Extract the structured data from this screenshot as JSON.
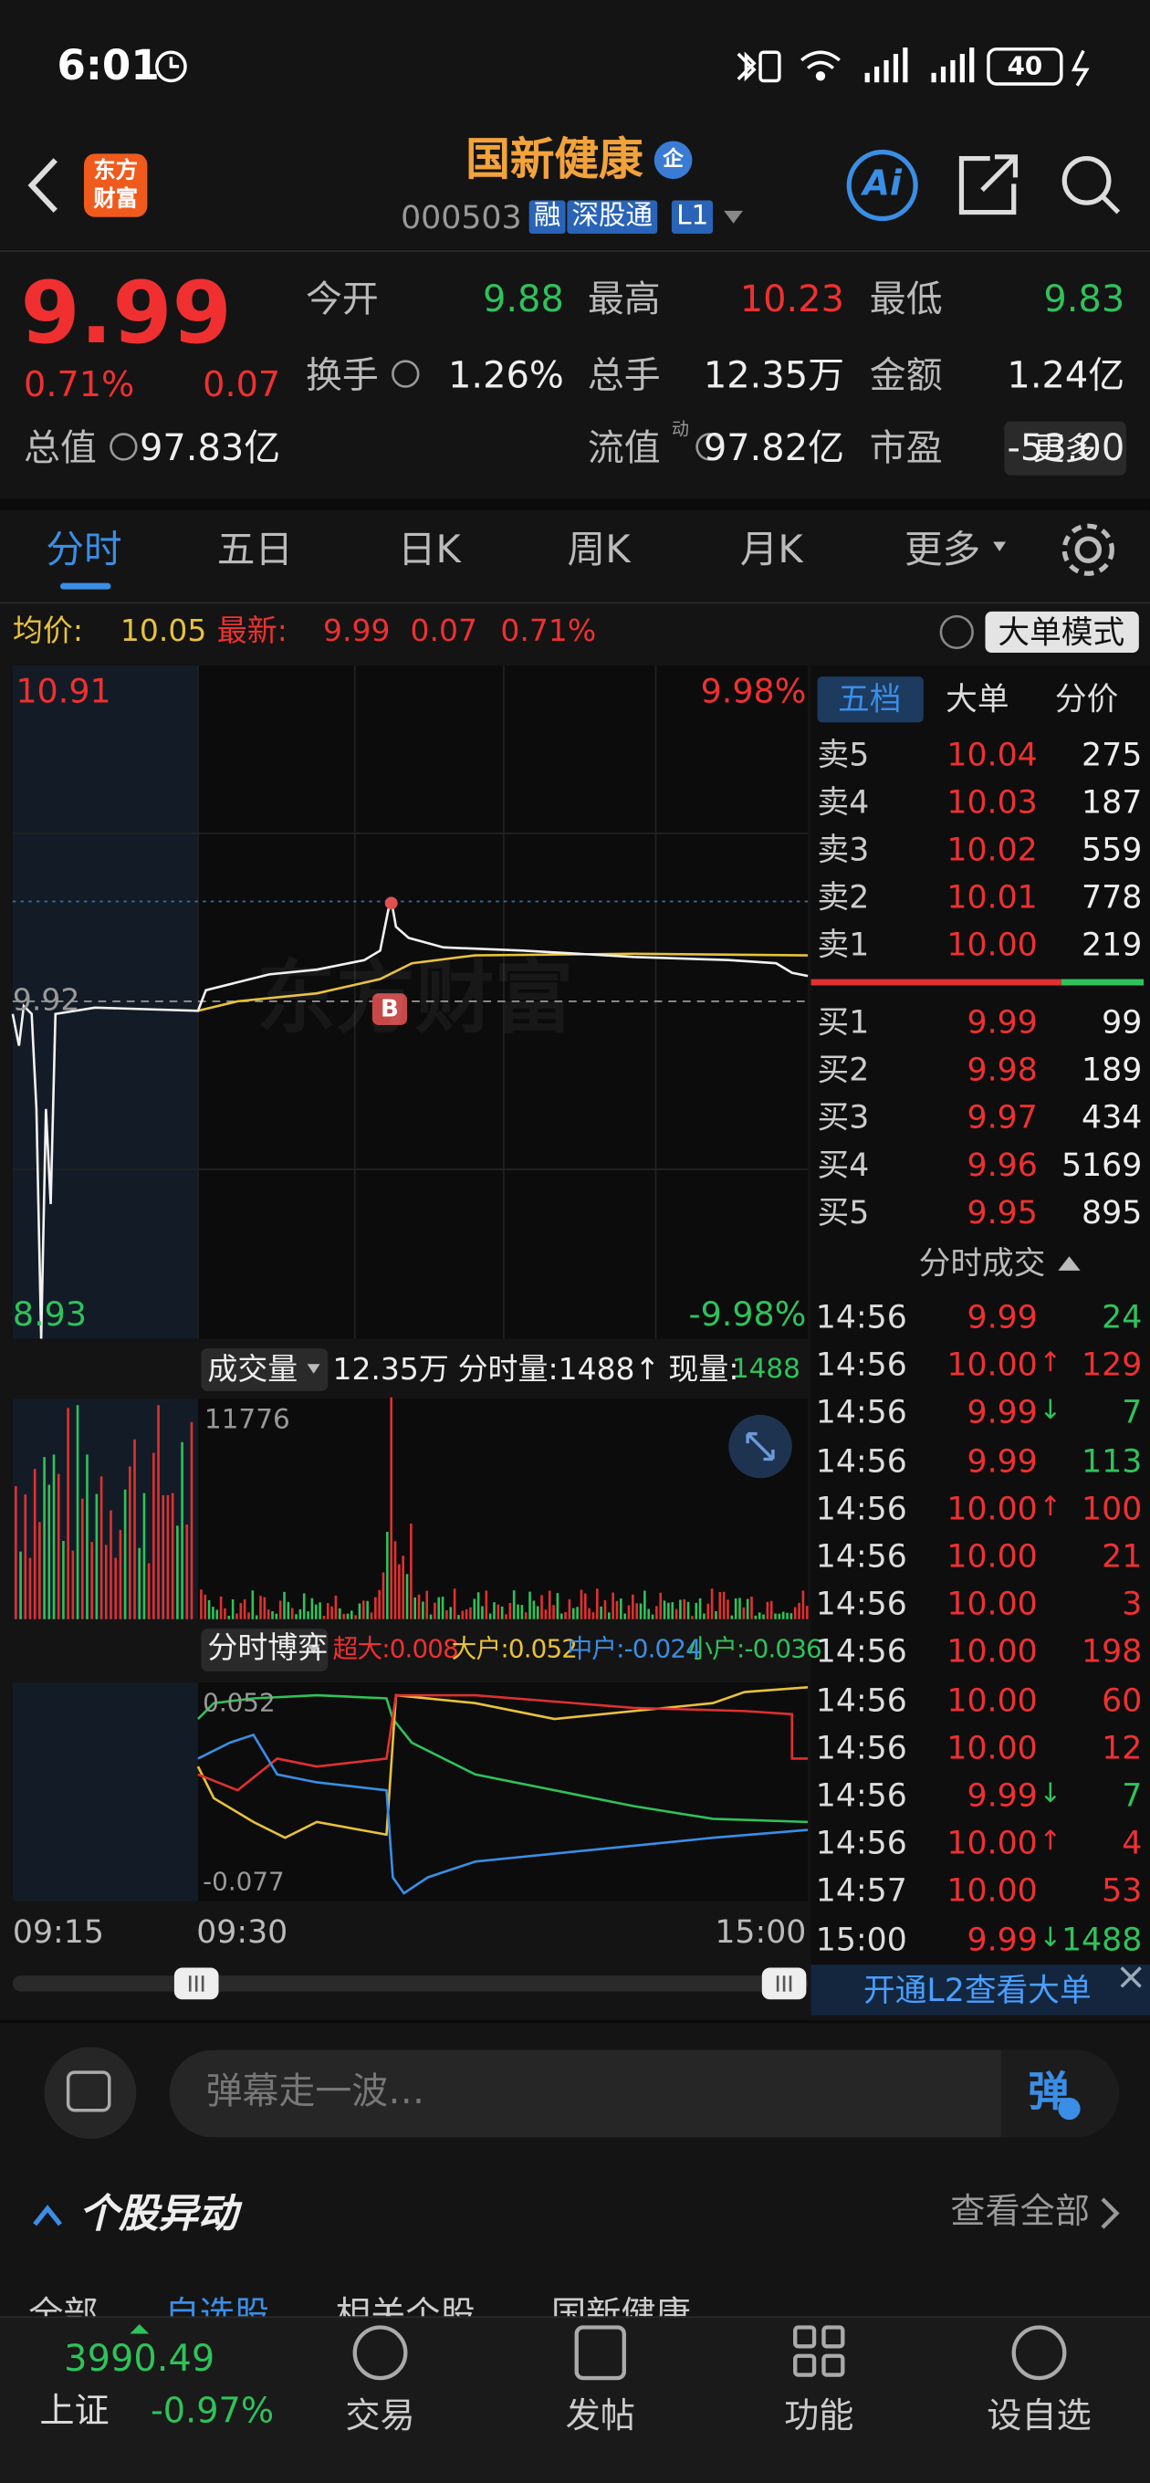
{
  "status_bar": {
    "time": "6:01",
    "battery": "40"
  },
  "header": {
    "logo": [
      "东方",
      "财富"
    ],
    "title": "国新健康",
    "badge": "企",
    "code": "000503",
    "tags": [
      "融",
      "深股通",
      "L1"
    ],
    "ai_button": "Ai"
  },
  "quote": {
    "price": "9.99",
    "change_pct": "0.71%",
    "change": "0.07",
    "color": "#f03030",
    "stats": [
      {
        "label": "今开",
        "value": "9.88",
        "color": "#2fc25b"
      },
      {
        "label": "最高",
        "value": "10.23",
        "color": "#f03030"
      },
      {
        "label": "最低",
        "value": "9.83",
        "color": "#2fc25b"
      },
      {
        "label": "换手",
        "value": "1.26%",
        "color": "#eeeeee"
      },
      {
        "label": "总手",
        "value": "12.35万",
        "color": "#eeeeee"
      },
      {
        "label": "金额",
        "value": "1.24亿",
        "color": "#eeeeee"
      },
      {
        "label": "总值",
        "value": "97.83亿",
        "color": "#eeeeee"
      },
      {
        "label": "流值",
        "value": "97.82亿",
        "color": "#eeeeee"
      },
      {
        "label": "市盈",
        "value": "-53.00",
        "color": "#eeeeee"
      }
    ],
    "pe_superscript": "动",
    "more": "更多"
  },
  "tabs": [
    "分时",
    "五日",
    "日K",
    "周K",
    "月K",
    "更多"
  ],
  "info_line": {
    "avg_label": "均价:",
    "avg": "10.05",
    "latest_label": "最新:",
    "latest": "9.99",
    "change": "0.07",
    "change_pct": "0.71%",
    "mode_button": "大单模式"
  },
  "chart": {
    "high": "10.91",
    "low": "8.93",
    "high_pct": "9.98%",
    "low_pct": "-9.98%",
    "prev_close": "9.92",
    "watermark": "东方财富",
    "buy_marker": "B",
    "volume_button": "成交量",
    "volume_total": "12.35万",
    "period_volume": "分时量:1488↑",
    "current_volume_label": "现量:",
    "current_volume": "1488",
    "volume_max": "11776",
    "flow_button": "分时博弈",
    "flow": [
      {
        "label": "超大:0.008",
        "color": "#f03030"
      },
      {
        "label": "大户:0.052",
        "color": "#e8c23a"
      },
      {
        "label": "中户:-0.024",
        "color": "#3a8ee6"
      },
      {
        "label": "小户:-0.036",
        "color": "#2fc25b"
      }
    ],
    "flow_max": "0.052",
    "flow_min": "-0.077",
    "times": [
      "09:15",
      "09:30",
      "15:00"
    ]
  },
  "order_book": {
    "tabs": [
      "五档",
      "大单",
      "分价"
    ],
    "asks": [
      {
        "label": "卖5",
        "price": "10.04",
        "volume": "275"
      },
      {
        "label": "卖4",
        "price": "10.03",
        "volume": "187"
      },
      {
        "label": "卖3",
        "price": "10.02",
        "volume": "559"
      },
      {
        "label": "卖2",
        "price": "10.01",
        "volume": "778"
      },
      {
        "label": "卖1",
        "price": "10.00",
        "volume": "219"
      }
    ],
    "bids": [
      {
        "label": "买1",
        "price": "9.99",
        "volume": "99"
      },
      {
        "label": "买2",
        "price": "9.98",
        "volume": "189"
      },
      {
        "label": "买3",
        "price": "9.97",
        "volume": "434"
      },
      {
        "label": "买4",
        "price": "9.96",
        "volume": "5169"
      },
      {
        "label": "买5",
        "price": "9.95",
        "volume": "895"
      }
    ]
  },
  "trades": {
    "title": "分时成交",
    "rows": [
      {
        "time": "14:56",
        "price": "9.99",
        "arrow": null,
        "volume": "24",
        "color": "#2fc25b"
      },
      {
        "time": "14:56",
        "price": "10.00",
        "arrow": "↑",
        "volume": "129",
        "color": "#f03030"
      },
      {
        "time": "14:56",
        "price": "9.99",
        "arrow": "↓",
        "volume": "7",
        "color": "#2fc25b"
      },
      {
        "time": "14:56",
        "price": "9.99",
        "arrow": null,
        "volume": "113",
        "color": "#2fc25b"
      },
      {
        "time": "14:56",
        "price": "10.00",
        "arrow": "↑",
        "volume": "100",
        "color": "#f03030"
      },
      {
        "time": "14:56",
        "price": "10.00",
        "arrow": null,
        "volume": "21",
        "color": "#f03030"
      },
      {
        "time": "14:56",
        "price": "10.00",
        "arrow": null,
        "volume": "3",
        "color": "#f03030"
      },
      {
        "time": "14:56",
        "price": "10.00",
        "arrow": null,
        "volume": "198",
        "color": "#f03030"
      },
      {
        "time": "14:56",
        "price": "10.00",
        "arrow": null,
        "volume": "60",
        "color": "#f03030"
      },
      {
        "time": "14:56",
        "price": "10.00",
        "arrow": null,
        "volume": "12",
        "color": "#f03030"
      },
      {
        "time": "14:56",
        "price": "9.99",
        "arrow": "↓",
        "volume": "7",
        "color": "#2fc25b"
      },
      {
        "time": "14:56",
        "price": "10.00",
        "arrow": "↑",
        "volume": "4",
        "color": "#f03030"
      },
      {
        "time": "14:57",
        "price": "10.00",
        "arrow": null,
        "volume": "53",
        "color": "#f03030"
      },
      {
        "time": "15:00",
        "price": "9.99",
        "arrow": "↓",
        "volume": "1488",
        "color": "#2fc25b"
      }
    ]
  },
  "l2_banner": "开通L2查看大单",
  "danmaku": {
    "placeholder": "弹幕走一波…",
    "send": "弹"
  },
  "movers": {
    "title": "个股异动",
    "view_all": "查看全部",
    "tabs": [
      "全部",
      "自选股",
      "相关个股",
      "国新健康"
    ]
  },
  "bottom_nav": {
    "index_value": "3990.49",
    "index_name": "上证",
    "index_change": "-0.97%",
    "items": [
      "交易",
      "发帖",
      "功能",
      "设自选"
    ]
  }
}
